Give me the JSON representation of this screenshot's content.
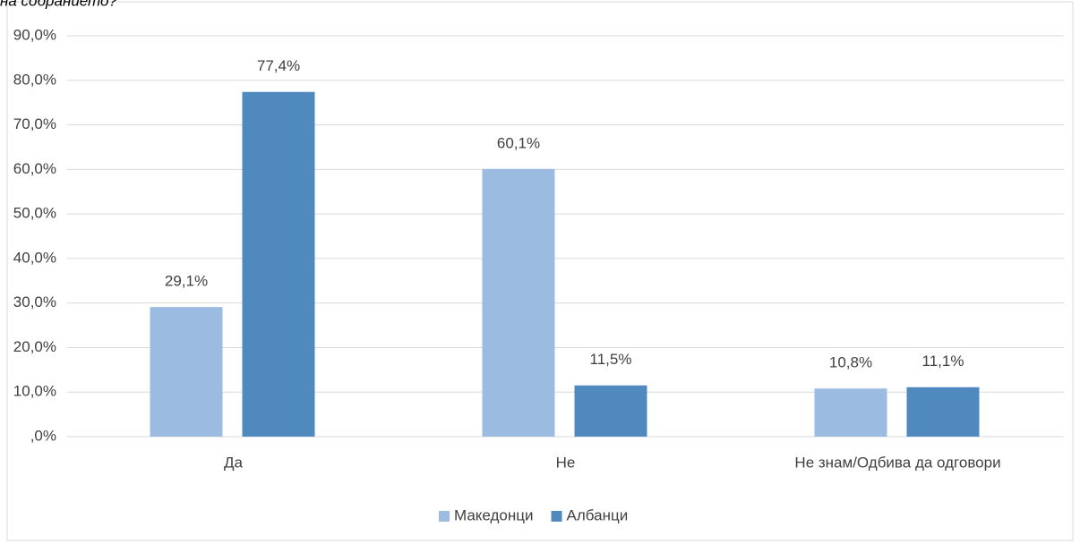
{
  "chart_data": {
    "type": "bar",
    "title": "на собранието?",
    "categories": [
      "Да",
      "Не",
      "Не знам/Одбива да одговори"
    ],
    "series": [
      {
        "name": "Македонци",
        "color": "#9bbbe0",
        "values": [
          29.1,
          60.1,
          10.8
        ],
        "value_labels": [
          "29,1%",
          "60,1%",
          "10,8%"
        ]
      },
      {
        "name": "Албанци",
        "color": "#4f89be",
        "values": [
          77.4,
          11.5,
          11.1
        ],
        "value_labels": [
          "77,4%",
          "11,5%",
          "11,1%"
        ]
      }
    ],
    "ylim": [
      0,
      90
    ],
    "yticks": [
      {
        "value": 0,
        "label": ",0%"
      },
      {
        "value": 10,
        "label": "10,0%"
      },
      {
        "value": 20,
        "label": "20,0%"
      },
      {
        "value": 30,
        "label": "30,0%"
      },
      {
        "value": 40,
        "label": "40,0%"
      },
      {
        "value": 50,
        "label": "50,0%"
      },
      {
        "value": 60,
        "label": "60,0%"
      },
      {
        "value": 70,
        "label": "70,0%"
      },
      {
        "value": 80,
        "label": "80,0%"
      },
      {
        "value": 90,
        "label": "90,0%"
      }
    ],
    "grid": true,
    "legend": "bottom"
  }
}
